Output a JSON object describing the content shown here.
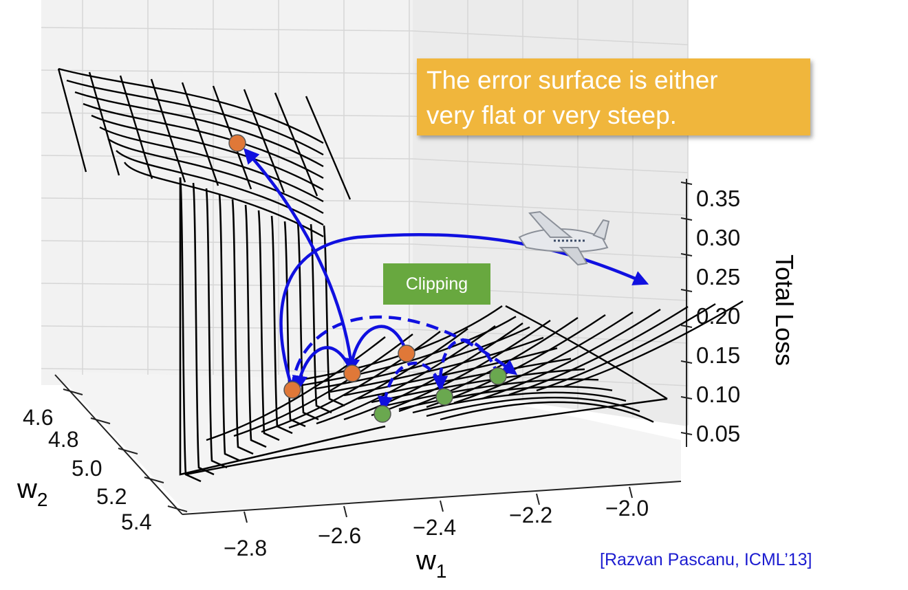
{
  "callout": {
    "lines": [
      "The error surface is either",
      "very flat or very steep."
    ],
    "color": "#f0b63c"
  },
  "clipping_label": "Clipping",
  "citation": "[Razvan Pascanu, ICML’13]",
  "chart_data": {
    "type": "surface3d",
    "title": "",
    "xlabel": "w",
    "xlabel_subscript": "1",
    "ylabel": "w",
    "ylabel_subscript": "2",
    "zlabel": "Total Loss",
    "x_ticks": [
      "−2.8",
      "−2.6",
      "−2.4",
      "−2.2",
      "−2.0"
    ],
    "y_ticks": [
      "4.6",
      "4.8",
      "5.0",
      "5.2",
      "5.4"
    ],
    "z_ticks": [
      "0.35",
      "0.30",
      "0.25",
      "0.20",
      "0.15",
      "0.10",
      "0.05"
    ],
    "xlim": [
      -2.9,
      -1.95
    ],
    "ylim": [
      4.5,
      5.45
    ],
    "zlim": [
      0.03,
      0.4
    ],
    "surface_color": "#000000",
    "arrow_color": "#1010e0",
    "unclipped_point_color": "#e07838",
    "clipped_point_color": "#6aa84f",
    "icons": [
      "airplane-icon"
    ]
  }
}
